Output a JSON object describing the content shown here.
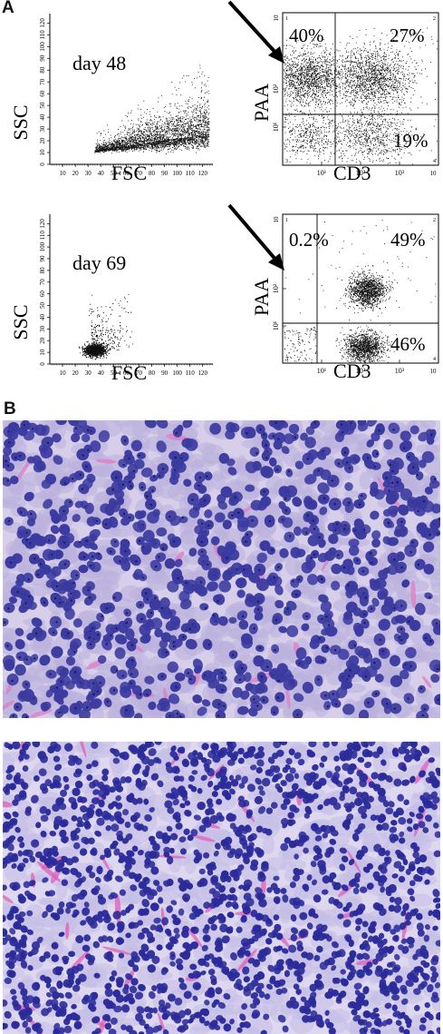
{
  "panel_a_label": "A",
  "panel_b_label": "B",
  "chart_data": [
    {
      "type": "scatter",
      "subtitle": "day 48",
      "xlabel": "FSC",
      "ylabel": "SSC",
      "xticks": [
        "10",
        "20",
        "30",
        "40",
        "50",
        "60",
        "70",
        "80",
        "90",
        "100",
        "110",
        "120"
      ],
      "yticks": [
        "0",
        "10",
        "20",
        "30",
        "40",
        "50",
        "60",
        "70",
        "80",
        "90",
        "100",
        "110",
        "120"
      ],
      "xlim": [
        0,
        128
      ],
      "ylim": [
        0,
        128
      ],
      "population": {
        "x_range": [
          35,
          125
        ],
        "y_at_x_min": 12,
        "y_at_x_max": 38,
        "note_shape": "dense band widening toward high FSC"
      }
    },
    {
      "type": "scatter",
      "xlabel": "CD3",
      "ylabel": "PAA",
      "scale": "log",
      "xticks": [
        "10¹",
        "10²",
        "10³"
      ],
      "yticks": [
        "10¹",
        "10²"
      ],
      "corner_labels": [
        "1",
        "2",
        "3",
        "4"
      ],
      "axis_end_labels": {
        "x": "10",
        "y": "10"
      },
      "quadrant_percent": {
        "upper_left": "40%",
        "upper_right": "27%",
        "lower_left": "",
        "lower_right": "19%"
      },
      "arrow": "pointing to upper-left PAA+ CD3- population"
    },
    {
      "type": "scatter",
      "subtitle": "day 69",
      "xlabel": "FSC",
      "ylabel": "SSC",
      "xticks": [
        "10",
        "20",
        "30",
        "40",
        "50",
        "60",
        "70",
        "80",
        "90",
        "100",
        "110",
        "120"
      ],
      "yticks": [
        "0",
        "10",
        "20",
        "30",
        "40",
        "50",
        "60",
        "70",
        "80",
        "90",
        "100",
        "110",
        "120"
      ],
      "xlim": [
        0,
        128
      ],
      "ylim": [
        0,
        128
      ],
      "population": {
        "center": [
          35,
          12
        ],
        "spread": "compact cluster with sparse tail to FSC 60"
      }
    },
    {
      "type": "scatter",
      "xlabel": "CD3",
      "ylabel": "PAA",
      "scale": "log",
      "xticks": [
        "10¹",
        "10²",
        "10³"
      ],
      "yticks": [
        "10¹",
        "10²"
      ],
      "corner_labels": [
        "1",
        "2",
        "3",
        "4"
      ],
      "axis_end_labels": {
        "x": "10",
        "y": "10"
      },
      "quadrant_percent": {
        "upper_left": "0.2%",
        "upper_right": "49%",
        "lower_left": "",
        "lower_right": "46%"
      },
      "arrow": "pointing to empty upper-left quadrant"
    }
  ],
  "histology": [
    {
      "stain": "hematoxylin-eosin",
      "cell_density": "moderate",
      "cell_size": "large",
      "nucleus_color": "#3a3aa0",
      "cytoplasm_color": "#b9b0dc",
      "background_color": "#d7cfea",
      "accent_color": "#e07bc4"
    },
    {
      "stain": "hematoxylin-eosin",
      "cell_density": "high",
      "cell_size": "small",
      "nucleus_color": "#2a2a9a",
      "cytoplasm_color": "#c4bde6",
      "background_color": "#ddd7f0",
      "accent_color": "#e05fb8"
    }
  ]
}
